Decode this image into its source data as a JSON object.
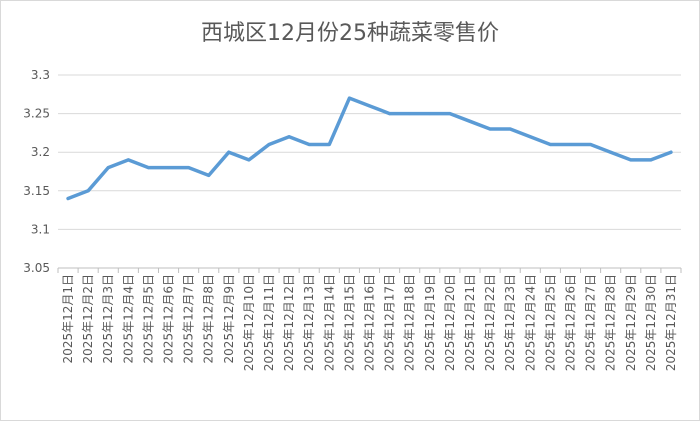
{
  "chart_data": {
    "type": "line",
    "title": "西城区12月份25种蔬菜零售价",
    "xlabel": "",
    "ylabel": "",
    "ylim": [
      3.05,
      3.3
    ],
    "yticks": [
      "3.05",
      "3.1",
      "3.15",
      "3.2",
      "3.25",
      "3.3"
    ],
    "grid": true,
    "legend": "none",
    "line_color": "#5b9bd5",
    "categories": [
      "2025年12月1日",
      "2025年12月2日",
      "2025年12月3日",
      "2025年12月4日",
      "2025年12月5日",
      "2025年12月6日",
      "2025年12月7日",
      "2025年12月8日",
      "2025年12月9日",
      "2025年12月10日",
      "2025年12月11日",
      "2025年12月12日",
      "2025年12月13日",
      "2025年12月14日",
      "2025年12月15日",
      "2025年12月16日",
      "2025年12月17日",
      "2025年12月18日",
      "2025年12月19日",
      "2025年12月20日",
      "2025年12月21日",
      "2025年12月22日",
      "2025年12月23日",
      "2025年12月24日",
      "2025年12月25日",
      "2025年12月26日",
      "2025年12月27日",
      "2025年12月28日",
      "2025年12月29日",
      "2025年12月30日",
      "2025年12月31日"
    ],
    "values": [
      3.14,
      3.15,
      3.18,
      3.19,
      3.18,
      3.18,
      3.18,
      3.17,
      3.2,
      3.19,
      3.21,
      3.22,
      3.21,
      3.21,
      3.27,
      3.26,
      3.25,
      3.25,
      3.25,
      3.25,
      3.24,
      3.23,
      3.23,
      3.22,
      3.21,
      3.21,
      3.21,
      3.2,
      3.19,
      3.19,
      3.2
    ]
  }
}
